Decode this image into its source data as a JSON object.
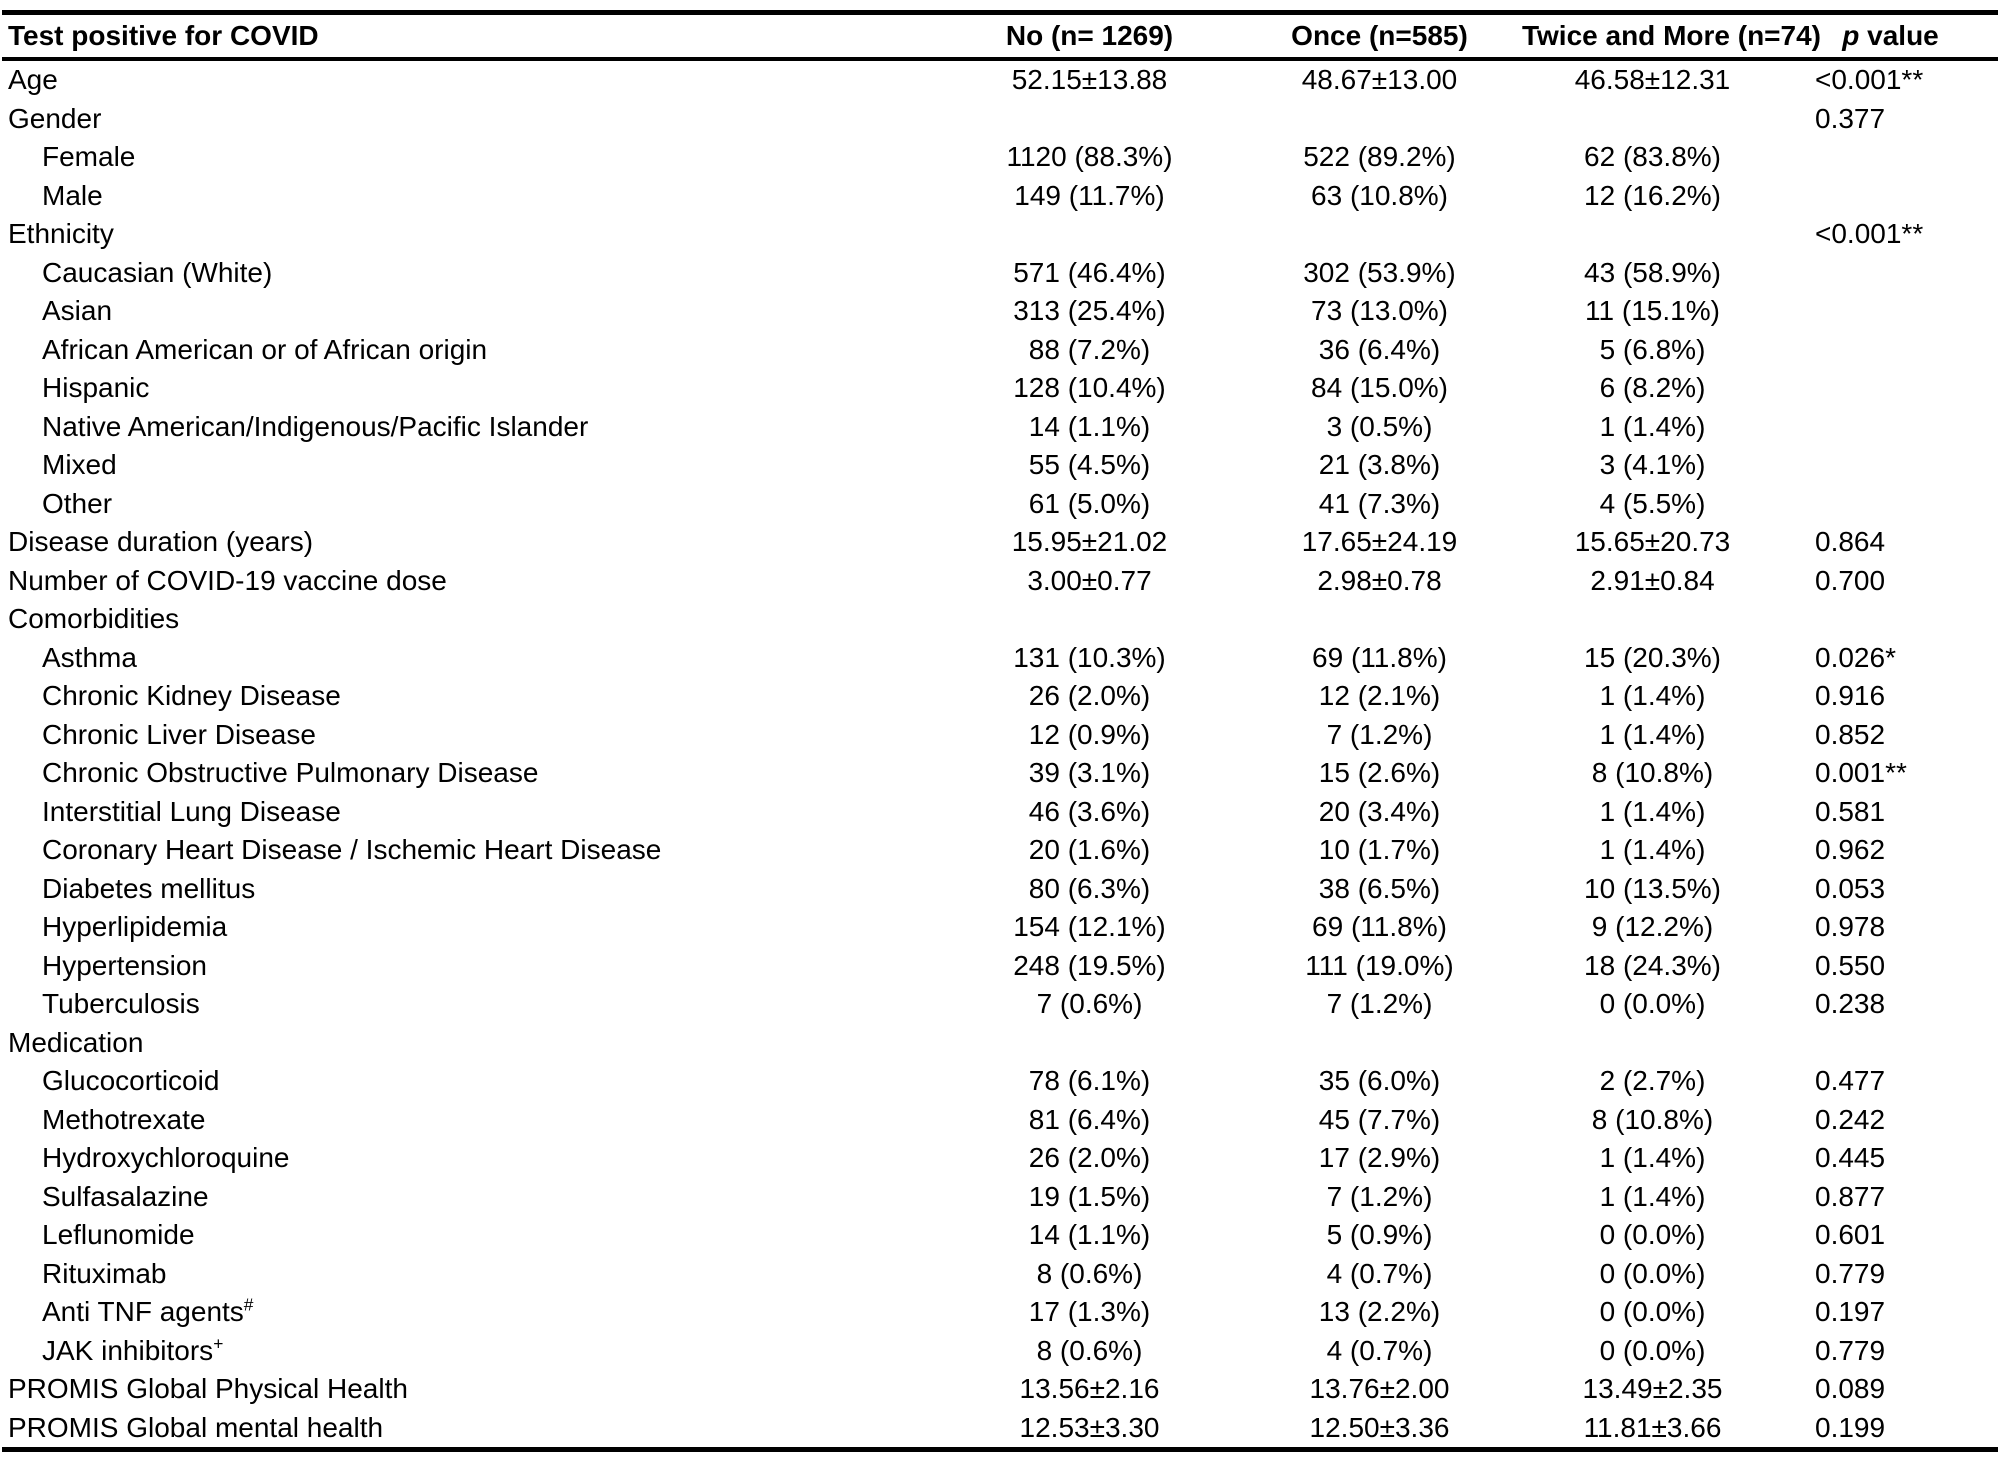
{
  "page": {
    "background_color": "#ffffff",
    "text_color": "#000000",
    "rule_color": "#000000"
  },
  "table": {
    "columns": {
      "label": "Test positive for COVID",
      "values": [
        "No (n= 1269)",
        "Once (n=585)",
        "Twice and More (n=74)"
      ],
      "p": {
        "italic": "p",
        "rest": "value"
      }
    },
    "rows": [
      {
        "label": "Age",
        "indent": 0,
        "values": [
          "52.15±13.88",
          "48.67±13.00",
          "46.58±12.31"
        ],
        "p": "<0.001**"
      },
      {
        "label": "Gender",
        "indent": 0,
        "values": [
          "",
          "",
          ""
        ],
        "p": "0.377"
      },
      {
        "label": "Female",
        "indent": 1,
        "values": [
          "1120 (88.3%)",
          "522 (89.2%)",
          "62 (83.8%)"
        ],
        "p": ""
      },
      {
        "label": "Male",
        "indent": 1,
        "values": [
          "149 (11.7%)",
          "63 (10.8%)",
          "12 (16.2%)"
        ],
        "p": ""
      },
      {
        "label": "Ethnicity",
        "indent": 0,
        "values": [
          "",
          "",
          ""
        ],
        "p": "<0.001**"
      },
      {
        "label": "Caucasian (White)",
        "indent": 1,
        "values": [
          "571 (46.4%)",
          "302 (53.9%)",
          "43 (58.9%)"
        ],
        "p": ""
      },
      {
        "label": "Asian",
        "indent": 1,
        "values": [
          "313 (25.4%)",
          "73 (13.0%)",
          "11 (15.1%)"
        ],
        "p": ""
      },
      {
        "label": "African American or of African origin",
        "indent": 1,
        "values": [
          "88 (7.2%)",
          "36 (6.4%)",
          "5 (6.8%)"
        ],
        "p": ""
      },
      {
        "label": "Hispanic",
        "indent": 1,
        "values": [
          "128 (10.4%)",
          "84 (15.0%)",
          "6 (8.2%)"
        ],
        "p": ""
      },
      {
        "label": "Native American/Indigenous/Pacific Islander",
        "indent": 1,
        "values": [
          "14 (1.1%)",
          "3 (0.5%)",
          "1 (1.4%)"
        ],
        "p": ""
      },
      {
        "label": "Mixed",
        "indent": 1,
        "values": [
          "55 (4.5%)",
          "21 (3.8%)",
          "3 (4.1%)"
        ],
        "p": ""
      },
      {
        "label": "Other",
        "indent": 1,
        "values": [
          "61 (5.0%)",
          "41 (7.3%)",
          "4 (5.5%)"
        ],
        "p": ""
      },
      {
        "label": "Disease duration (years)",
        "indent": 0,
        "values": [
          "15.95±21.02",
          "17.65±24.19",
          "15.65±20.73"
        ],
        "p": "0.864"
      },
      {
        "label": "Number of COVID-19 vaccine dose",
        "indent": 0,
        "values": [
          "3.00±0.77",
          "2.98±0.78",
          "2.91±0.84"
        ],
        "p": "0.700"
      },
      {
        "label": "Comorbidities",
        "indent": 0,
        "values": [
          "",
          "",
          ""
        ],
        "p": ""
      },
      {
        "label": "Asthma",
        "indent": 1,
        "values": [
          "131 (10.3%)",
          "69 (11.8%)",
          "15 (20.3%)"
        ],
        "p": "0.026*"
      },
      {
        "label": "Chronic Kidney Disease",
        "indent": 1,
        "values": [
          "26 (2.0%)",
          "12 (2.1%)",
          "1 (1.4%)"
        ],
        "p": "0.916"
      },
      {
        "label": "Chronic Liver Disease",
        "indent": 1,
        "values": [
          "12 (0.9%)",
          "7 (1.2%)",
          "1 (1.4%)"
        ],
        "p": "0.852"
      },
      {
        "label": "Chronic Obstructive Pulmonary Disease",
        "indent": 1,
        "values": [
          "39 (3.1%)",
          "15 (2.6%)",
          "8 (10.8%)"
        ],
        "p": "0.001**"
      },
      {
        "label": "Interstitial Lung Disease",
        "indent": 1,
        "values": [
          "46 (3.6%)",
          "20 (3.4%)",
          "1 (1.4%)"
        ],
        "p": "0.581"
      },
      {
        "label": "Coronary Heart Disease / Ischemic Heart Disease",
        "indent": 1,
        "values": [
          "20 (1.6%)",
          "10 (1.7%)",
          "1 (1.4%)"
        ],
        "p": "0.962"
      },
      {
        "label": "Diabetes mellitus",
        "indent": 1,
        "values": [
          "80 (6.3%)",
          "38 (6.5%)",
          "10 (13.5%)"
        ],
        "p": "0.053"
      },
      {
        "label": "Hyperlipidemia",
        "indent": 1,
        "values": [
          "154 (12.1%)",
          "69 (11.8%)",
          "9 (12.2%)"
        ],
        "p": "0.978"
      },
      {
        "label": "Hypertension",
        "indent": 1,
        "values": [
          "248 (19.5%)",
          "111 (19.0%)",
          "18 (24.3%)"
        ],
        "p": "0.550"
      },
      {
        "label": "Tuberculosis",
        "indent": 1,
        "values": [
          "7 (0.6%)",
          "7 (1.2%)",
          "0 (0.0%)"
        ],
        "p": "0.238"
      },
      {
        "label": "Medication",
        "indent": 0,
        "values": [
          "",
          "",
          ""
        ],
        "p": ""
      },
      {
        "label": "Glucocorticoid",
        "indent": 1,
        "values": [
          "78 (6.1%)",
          "35 (6.0%)",
          "2 (2.7%)"
        ],
        "p": "0.477"
      },
      {
        "label": "Methotrexate",
        "indent": 1,
        "values": [
          "81 (6.4%)",
          "45 (7.7%)",
          "8 (10.8%)"
        ],
        "p": "0.242"
      },
      {
        "label": "Hydroxychloroquine",
        "indent": 1,
        "values": [
          "26 (2.0%)",
          "17 (2.9%)",
          "1 (1.4%)"
        ],
        "p": "0.445"
      },
      {
        "label": "Sulfasalazine",
        "indent": 1,
        "values": [
          "19 (1.5%)",
          "7 (1.2%)",
          "1 (1.4%)"
        ],
        "p": "0.877"
      },
      {
        "label": "Leflunomide",
        "indent": 1,
        "values": [
          "14 (1.1%)",
          "5 (0.9%)",
          "0 (0.0%)"
        ],
        "p": "0.601"
      },
      {
        "label": "Rituximab",
        "indent": 1,
        "values": [
          "8 (0.6%)",
          "4 (0.7%)",
          "0 (0.0%)"
        ],
        "p": "0.779"
      },
      {
        "label": "Anti TNF agents",
        "sup": "#",
        "indent": 1,
        "values": [
          "17 (1.3%)",
          "13 (2.2%)",
          "0 (0.0%)"
        ],
        "p": "0.197"
      },
      {
        "label": "JAK inhibitors",
        "sup": "+",
        "indent": 1,
        "values": [
          "8 (0.6%)",
          "4 (0.7%)",
          "0 (0.0%)"
        ],
        "p": "0.779"
      },
      {
        "label": "PROMIS Global Physical Health",
        "indent": 0,
        "values": [
          "13.56±2.16",
          "13.76±2.00",
          "13.49±2.35"
        ],
        "p": "0.089"
      },
      {
        "label": "PROMIS Global mental health",
        "indent": 0,
        "values": [
          "12.53±3.30",
          "12.50±3.36",
          "11.81±3.66"
        ],
        "p": "0.199"
      }
    ]
  }
}
